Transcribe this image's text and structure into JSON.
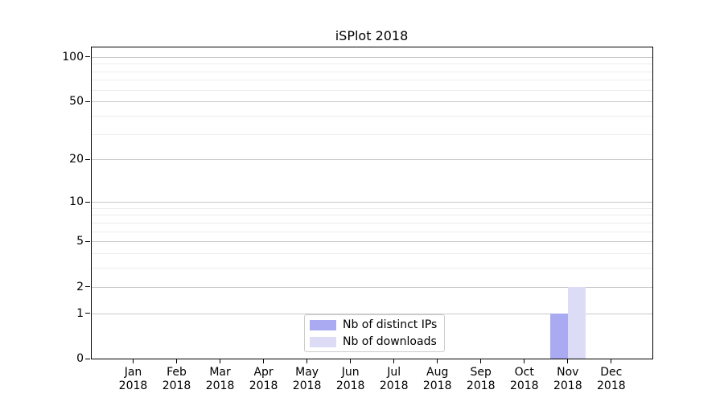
{
  "title": "iSPlot 2018",
  "chart_data": {
    "type": "bar",
    "title": "iSPlot 2018",
    "yscale": "log10(1+y)",
    "ylim": [
      0,
      115
    ],
    "y_ticks": [
      0,
      1,
      2,
      5,
      10,
      20,
      50,
      100
    ],
    "y_minor_gridlines": [
      3,
      4,
      6,
      7,
      8,
      9,
      30,
      40,
      60,
      70,
      80,
      90
    ],
    "grid": "horizontal",
    "x_year": "2018",
    "categories": [
      "Jan",
      "Feb",
      "Mar",
      "Apr",
      "May",
      "Jun",
      "Jul",
      "Aug",
      "Sep",
      "Oct",
      "Nov",
      "Dec"
    ],
    "series": [
      {
        "name": "Nb of distinct IPs",
        "color": "#aaaaf2",
        "values": [
          0,
          0,
          0,
          0,
          0,
          0,
          0,
          0,
          0,
          0,
          1,
          0
        ]
      },
      {
        "name": "Nb of downloads",
        "color": "#dcdcf7",
        "values": [
          0,
          0,
          0,
          0,
          0,
          0,
          0,
          0,
          0,
          0,
          2,
          0
        ]
      }
    ],
    "legend_position": "lower center inside"
  },
  "colors": {
    "background": "#ffffff",
    "axis": "#000000",
    "major_grid": "#c9c9c9",
    "minor_grid": "#ececec",
    "legend_border": "#cccccc",
    "bar_distinct_ips": "#aaaaf2",
    "bar_downloads": "#dcdcf7"
  }
}
